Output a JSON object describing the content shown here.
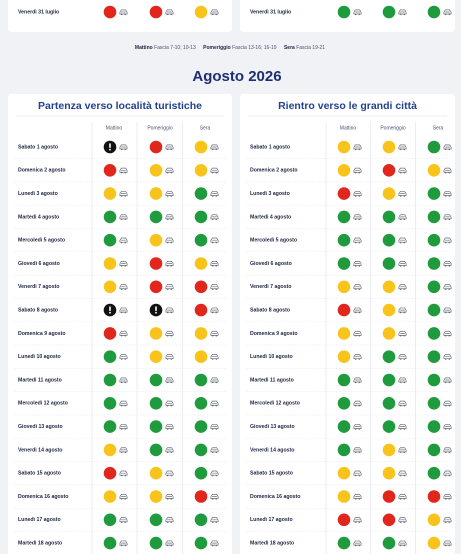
{
  "previous_month": [
    {
      "date": "Venerdì 31 luglio",
      "levels": [
        "r",
        "r",
        "y"
      ]
    },
    {
      "date": "Venerdì 31 luglio",
      "levels": [
        "g",
        "g",
        "g"
      ]
    }
  ],
  "legend": [
    {
      "label": "Mattino",
      "range": "Fascia 7-10; 10-13"
    },
    {
      "label": "Pomeriggio",
      "range": "Fascia 13-16; 16-19"
    },
    {
      "label": "Sera",
      "range": "Fascia 19-21"
    }
  ],
  "month_title": "Agosto 2026",
  "columns": [
    "Mattino",
    "Pomeriggio",
    "Sera"
  ],
  "level_colors": {
    "g": "#1f9a3c",
    "y": "#f8c41c",
    "r": "#e1261c",
    "b": "#111111"
  },
  "tables": [
    {
      "title": "Partenza verso località turistiche",
      "rows": [
        {
          "date": "Sabato 1 agosto",
          "levels": [
            "b",
            "r",
            "y"
          ]
        },
        {
          "date": "Domenica 2 agosto",
          "levels": [
            "r",
            "y",
            "y"
          ]
        },
        {
          "date": "Lunedì 3 agosto",
          "levels": [
            "y",
            "y",
            "g"
          ]
        },
        {
          "date": "Martedì 4 agosto",
          "levels": [
            "g",
            "g",
            "g"
          ]
        },
        {
          "date": "Mercoledì 5 agosto",
          "levels": [
            "g",
            "y",
            "g"
          ]
        },
        {
          "date": "Giovedì 6 agosto",
          "levels": [
            "y",
            "r",
            "y"
          ]
        },
        {
          "date": "Venerdì 7 agosto",
          "levels": [
            "y",
            "r",
            "r"
          ]
        },
        {
          "date": "Sabato 8 agosto",
          "levels": [
            "b",
            "b",
            "r"
          ]
        },
        {
          "date": "Domenica 9 agosto",
          "levels": [
            "r",
            "y",
            "y"
          ]
        },
        {
          "date": "Lunedì 10 agosto",
          "levels": [
            "g",
            "y",
            "y"
          ]
        },
        {
          "date": "Martedì 11 agosto",
          "levels": [
            "g",
            "g",
            "g"
          ]
        },
        {
          "date": "Mercoledì 12 agosto",
          "levels": [
            "g",
            "g",
            "g"
          ]
        },
        {
          "date": "Giovedì 13 agosto",
          "levels": [
            "g",
            "g",
            "g"
          ]
        },
        {
          "date": "Venerdì 14 agosto",
          "levels": [
            "y",
            "g",
            "g"
          ]
        },
        {
          "date": "Sabato 15 agosto",
          "levels": [
            "r",
            "y",
            "g"
          ]
        },
        {
          "date": "Domenica 16 agosto",
          "levels": [
            "y",
            "y",
            "r"
          ]
        },
        {
          "date": "Lunedì 17 agosto",
          "levels": [
            "g",
            "g",
            "g"
          ]
        },
        {
          "date": "Martedì 18 agosto",
          "levels": [
            "g",
            "g",
            "g"
          ]
        }
      ]
    },
    {
      "title": "Rientro verso le grandi città",
      "rows": [
        {
          "date": "Sabato 1 agosto",
          "levels": [
            "y",
            "y",
            "g"
          ]
        },
        {
          "date": "Domenica 2 agosto",
          "levels": [
            "y",
            "r",
            "y"
          ]
        },
        {
          "date": "Lunedì 3 agosto",
          "levels": [
            "r",
            "y",
            "g"
          ]
        },
        {
          "date": "Martedì 4 agosto",
          "levels": [
            "g",
            "g",
            "g"
          ]
        },
        {
          "date": "Mercoledì 5 agosto",
          "levels": [
            "g",
            "g",
            "g"
          ]
        },
        {
          "date": "Giovedì 6 agosto",
          "levels": [
            "g",
            "g",
            "g"
          ]
        },
        {
          "date": "Venerdì 7 agosto",
          "levels": [
            "y",
            "y",
            "g"
          ]
        },
        {
          "date": "Sabato 8 agosto",
          "levels": [
            "r",
            "y",
            "g"
          ]
        },
        {
          "date": "Domenica 9 agosto",
          "levels": [
            "y",
            "y",
            "g"
          ]
        },
        {
          "date": "Lunedì 10 agosto",
          "levels": [
            "y",
            "g",
            "g"
          ]
        },
        {
          "date": "Martedì 11 agosto",
          "levels": [
            "g",
            "g",
            "g"
          ]
        },
        {
          "date": "Mercoledì 12 agosto",
          "levels": [
            "g",
            "g",
            "g"
          ]
        },
        {
          "date": "Giovedì 13 agosto",
          "levels": [
            "g",
            "g",
            "g"
          ]
        },
        {
          "date": "Venerdì 14 agosto",
          "levels": [
            "g",
            "y",
            "g"
          ]
        },
        {
          "date": "Sabato 15 agosto",
          "levels": [
            "y",
            "y",
            "g"
          ]
        },
        {
          "date": "Domenica 16 agosto",
          "levels": [
            "y",
            "r",
            "r"
          ]
        },
        {
          "date": "Lunedì 17 agosto",
          "levels": [
            "r",
            "r",
            "y"
          ]
        },
        {
          "date": "Martedì 18 agosto",
          "levels": [
            "g",
            "g",
            "y"
          ]
        }
      ]
    }
  ]
}
